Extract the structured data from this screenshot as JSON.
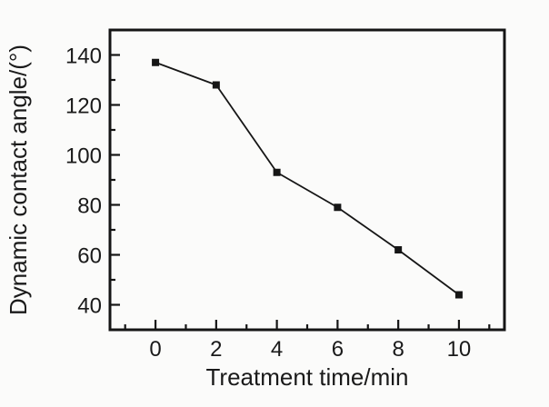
{
  "figure": {
    "background_color": "#fbfbfa",
    "ink_color": "#161616"
  },
  "chart_data": {
    "type": "line",
    "title": "",
    "xlabel": "Treatment time/min",
    "ylabel": "Dynamic contact angle/(°)",
    "series": [
      {
        "name": "dynamic-contact-angle",
        "x": [
          0,
          2,
          4,
          6,
          8,
          10
        ],
        "y": [
          137,
          128,
          93,
          79,
          62,
          44
        ],
        "marker": "filled-square",
        "marker_size": 8,
        "line_color": "#161616",
        "marker_color": "#161616"
      }
    ],
    "xlim": [
      -1.5,
      11.5
    ],
    "ylim": [
      30,
      150
    ],
    "x_ticks": [
      0,
      2,
      4,
      6,
      8,
      10
    ],
    "x_tick_labels": [
      "0",
      "2",
      "4",
      "6",
      "8",
      "10"
    ],
    "x_minor_ticks": [
      -1,
      1,
      3,
      5,
      7,
      9,
      11
    ],
    "y_ticks": [
      40,
      60,
      80,
      100,
      120,
      140
    ],
    "y_tick_labels": [
      "40",
      "60",
      "80",
      "100",
      "120",
      "140"
    ],
    "y_minor_ticks": [
      50,
      70,
      90,
      110,
      130
    ],
    "grid": false,
    "legend": null,
    "tick_direction": "in",
    "frame": "box"
  }
}
